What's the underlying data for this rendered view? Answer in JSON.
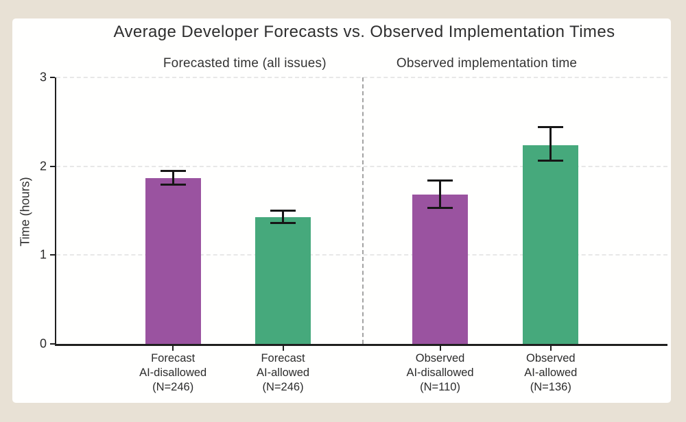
{
  "theme": {
    "frame_background": "#e8e1d5",
    "card_background": "#fffffe",
    "axis_color": "#1f1f1f",
    "gridline_color": "#e7e7e7",
    "divider_color": "#a3a3a3",
    "error_bar_color": "#161616",
    "color_disallowed": "#9a53a0",
    "color_allowed": "#46a97c"
  },
  "chart_data": {
    "type": "bar",
    "title": "Average Developer Forecasts vs. Observed Implementation Times",
    "ylabel": "Time (hours)",
    "xlabel": "",
    "ylim": [
      0,
      3
    ],
    "yticks": [
      0,
      1,
      2,
      3
    ],
    "grid": "horizontal-dashed",
    "legend_position": "none",
    "panels": [
      {
        "label": "Forecasted time (all issues)"
      },
      {
        "label": "Observed implementation time"
      }
    ],
    "divider": {
      "style": "dashed-vertical",
      "position": "between panels"
    },
    "bars": [
      {
        "panel": 0,
        "label_lines": [
          "Forecast",
          "AI-disallowed",
          "(N=246)"
        ],
        "value": 1.87,
        "err_low": 1.79,
        "err_high": 1.95,
        "color": "#9a53a0"
      },
      {
        "panel": 0,
        "label_lines": [
          "Forecast",
          "AI-allowed",
          "(N=246)"
        ],
        "value": 1.43,
        "err_low": 1.36,
        "err_high": 1.5,
        "color": "#46a97c"
      },
      {
        "panel": 1,
        "label_lines": [
          "Observed",
          "AI-disallowed",
          "(N=110)"
        ],
        "value": 1.68,
        "err_low": 1.53,
        "err_high": 1.84,
        "color": "#9a53a0"
      },
      {
        "panel": 1,
        "label_lines": [
          "Observed",
          "AI-allowed",
          "(N=136)"
        ],
        "value": 2.24,
        "err_low": 2.06,
        "err_high": 2.44,
        "color": "#46a97c"
      }
    ]
  }
}
